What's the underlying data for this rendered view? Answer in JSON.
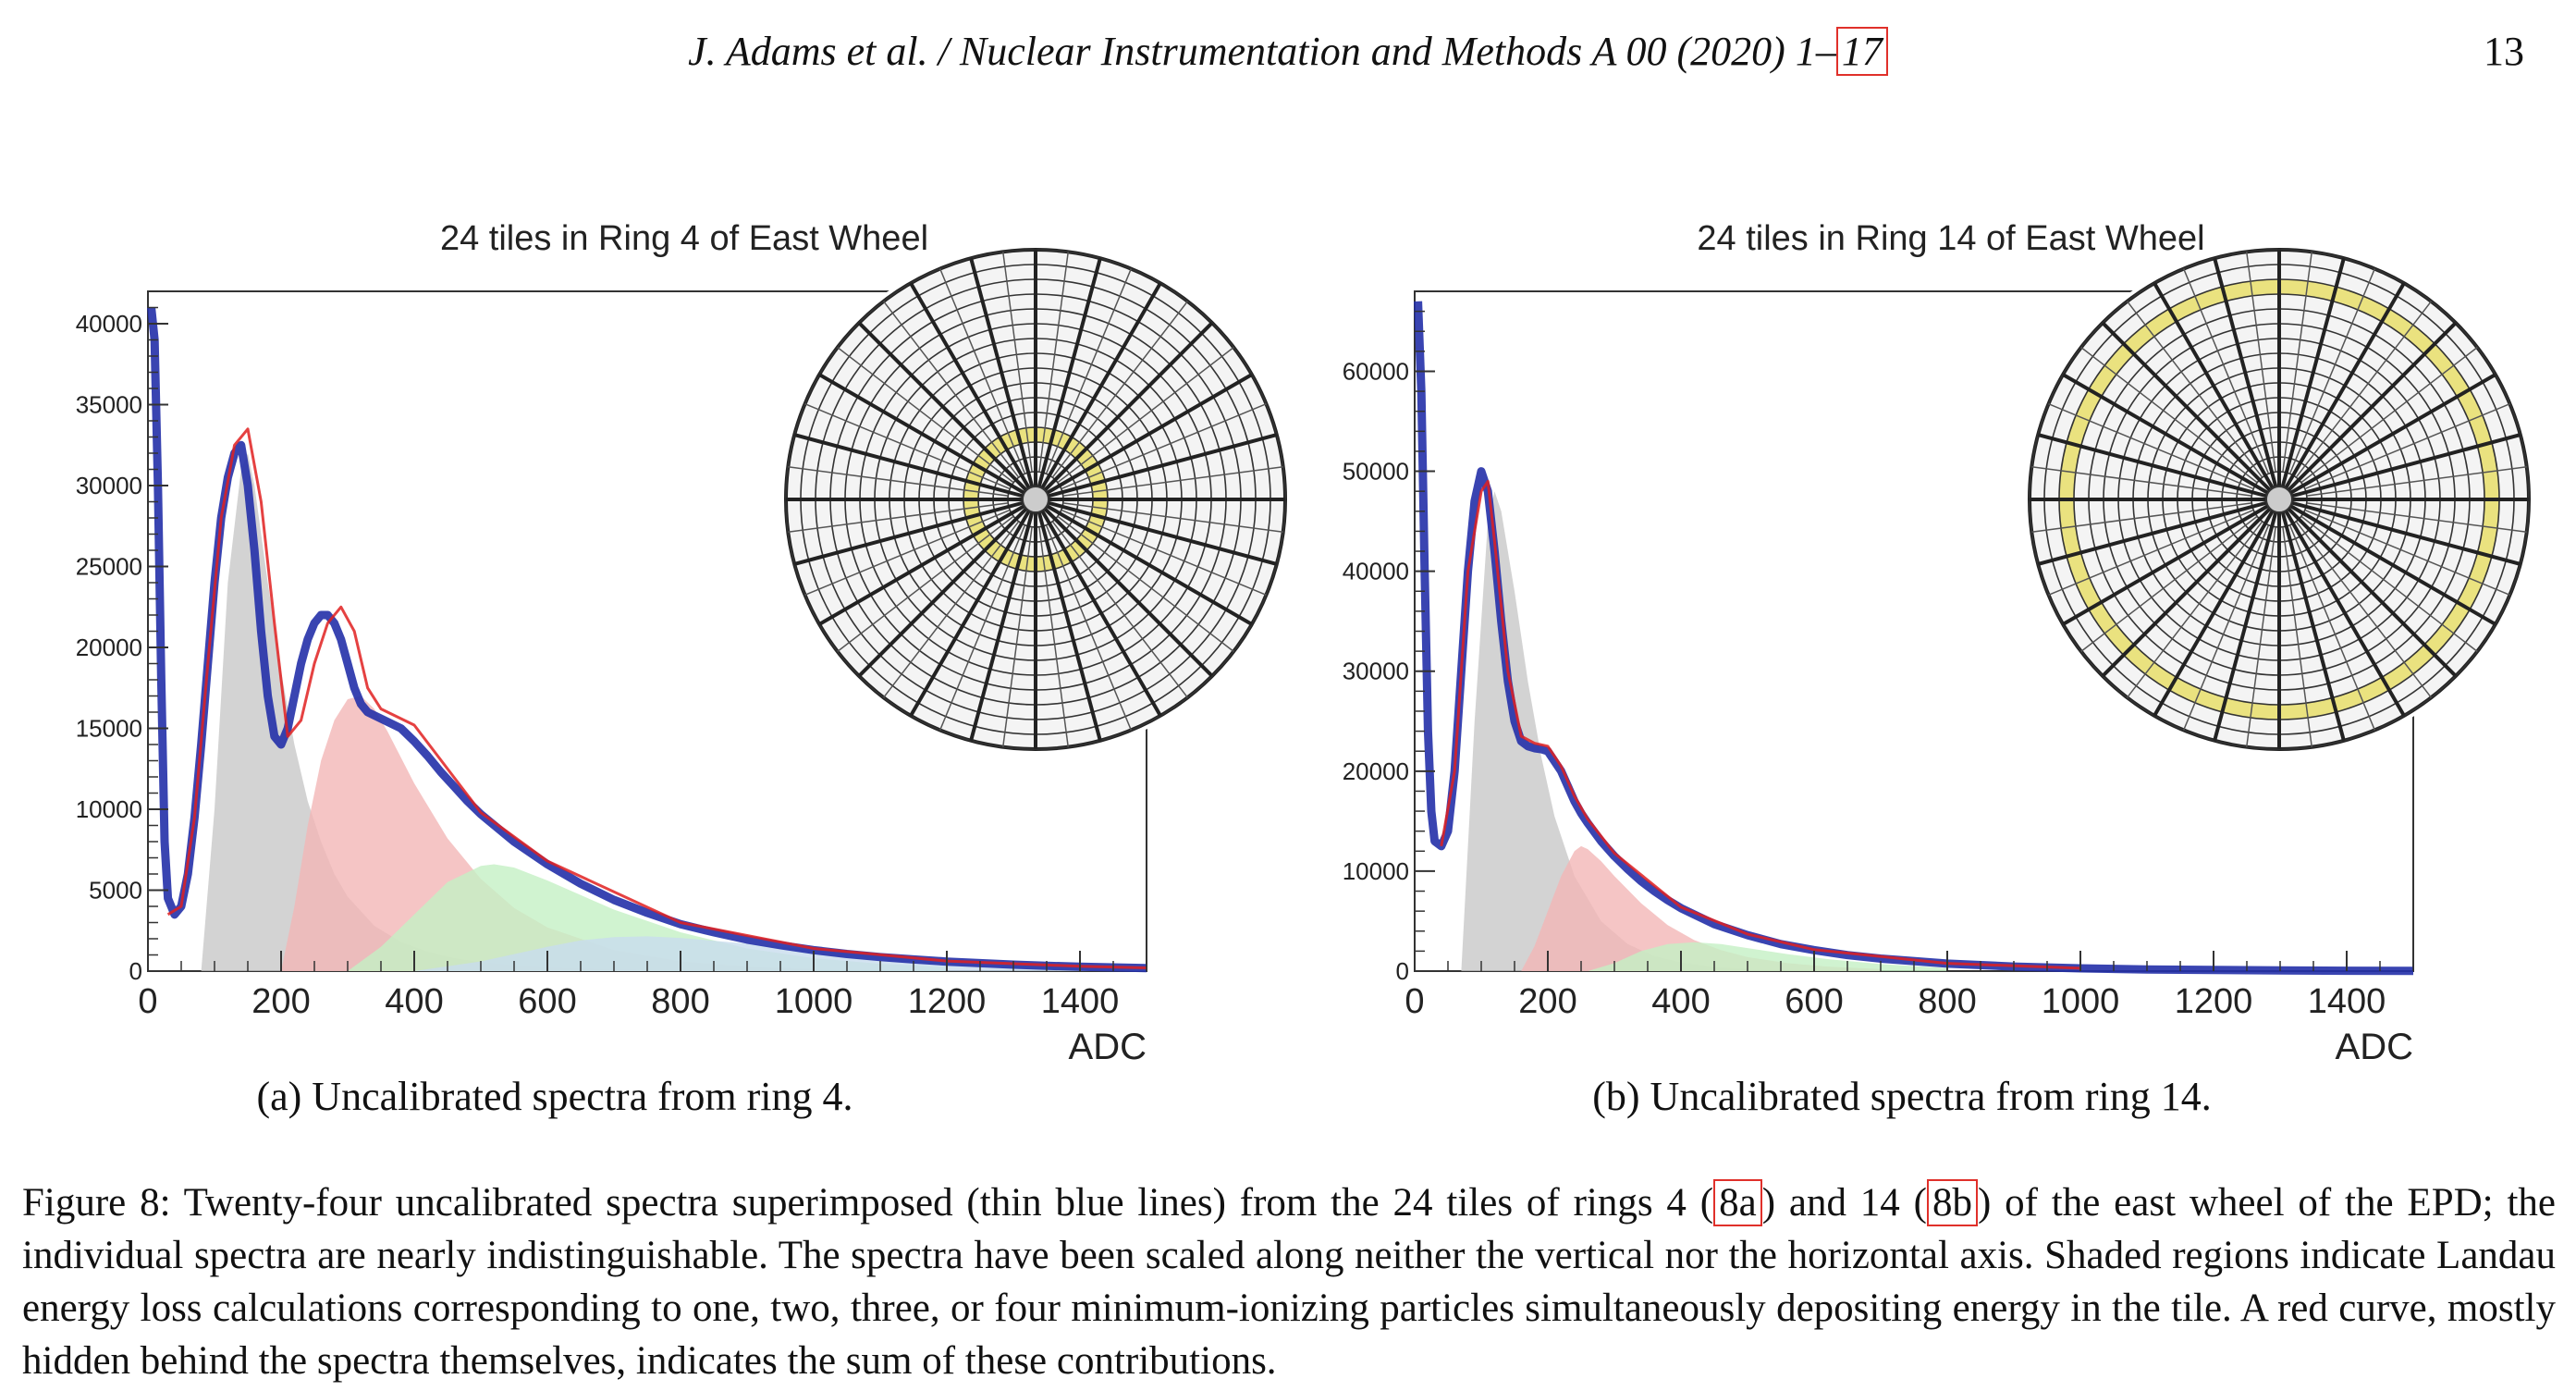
{
  "header": {
    "running_title_pre": "J. Adams et al. / Nuclear Instrumentation and Methods A 00 (2020) 1–",
    "running_title_link": "17",
    "page_number": "13"
  },
  "figures": [
    {
      "id": "a",
      "subcaption": "(a) Uncalibrated spectra from ring 4.",
      "chart_data": {
        "type": "area",
        "title": "24 tiles in Ring 4 of East Wheel",
        "xlabel": "ADC",
        "ylabel": "",
        "xlim": [
          0,
          1500
        ],
        "ylim": [
          0,
          42000
        ],
        "xticks": [
          0,
          200,
          400,
          600,
          800,
          1000,
          1200,
          1400
        ],
        "yticks": [
          0,
          5000,
          10000,
          15000,
          20000,
          25000,
          30000,
          35000,
          40000
        ],
        "highlighted_ring": 4,
        "series": [
          {
            "color": "#2430a8",
            "x": [
              5,
              10,
              15,
              20,
              25,
              30,
              40,
              50,
              60,
              70,
              80,
              90,
              100,
              110,
              120,
              130,
              140,
              150,
              160,
              170,
              180,
              190,
              200,
              210,
              220,
              230,
              240,
              250,
              260,
              270,
              280,
              290,
              300,
              310,
              320,
              330,
              340,
              350,
              360,
              380,
              400,
              420,
              440,
              460,
              480,
              500,
              550,
              600,
              650,
              700,
              750,
              800,
              850,
              900,
              950,
              1000,
              1050,
              1100,
              1150,
              1200,
              1250,
              1300,
              1350,
              1400,
              1450,
              1500
            ],
            "values": [
              41000,
              39000,
              30000,
              18000,
              8000,
              4500,
              3500,
              4000,
              6000,
              9500,
              14000,
              19000,
              24000,
              28000,
              30500,
              32000,
              32500,
              30000,
              26000,
              21000,
              17000,
              14500,
              14000,
              15000,
              17000,
              19000,
              20500,
              21500,
              22000,
              22000,
              21500,
              20500,
              19000,
              17500,
              16500,
              16000,
              15800,
              15600,
              15400,
              15000,
              14200,
              13300,
              12300,
              11400,
              10500,
              9700,
              8000,
              6600,
              5400,
              4400,
              3600,
              2900,
              2400,
              1950,
              1600,
              1300,
              1060,
              870,
              720,
              590,
              490,
              400,
              330,
              270,
              230,
              190
            ]
          },
          {
            "color": "#e02020",
            "x": [
              30,
              50,
              70,
              90,
              110,
              130,
              150,
              170,
              190,
              210,
              230,
              250,
              270,
              290,
              310,
              330,
              350,
              400,
              500,
              600,
              800,
              1000,
              1200,
              1400,
              1500
            ],
            "values": [
              3500,
              4000,
              9500,
              19000,
              28000,
              32500,
              33500,
              29000,
              21500,
              14500,
              15500,
              19000,
              21500,
              22500,
              21000,
              17500,
              16200,
              15200,
              9800,
              6800,
              3000,
              1400,
              620,
              300,
              200
            ]
          },
          {
            "color": "#c8c8c8",
            "x": [
              80,
              100,
              120,
              140,
              150,
              160,
              180,
              200,
              220,
              240,
              260,
              280,
              300,
              340,
              380,
              420,
              460,
              500,
              560,
              600,
              700,
              800
            ],
            "values": [
              0,
              10000,
              24000,
              31000,
              32000,
              30000,
              24000,
              18500,
              14000,
              10500,
              8000,
              6000,
              4600,
              2800,
              1800,
              1200,
              800,
              550,
              300,
              200,
              80,
              20
            ]
          },
          {
            "color": "#f2b6b6",
            "x": [
              200,
              220,
              240,
              260,
              280,
              300,
              320,
              340,
              360,
              380,
              400,
              450,
              500,
              550,
              600,
              700,
              800,
              900,
              1000
            ],
            "values": [
              0,
              4000,
              9000,
              13000,
              15500,
              16800,
              17000,
              16200,
              14800,
              13200,
              11600,
              8200,
              5700,
              3900,
              2700,
              1300,
              600,
              280,
              120
            ]
          },
          {
            "color": "#c4f0c4",
            "x": [
              300,
              350,
              400,
              450,
              500,
              520,
              550,
              600,
              650,
              700,
              800,
              900,
              1000,
              1100,
              1200
            ],
            "values": [
              0,
              1500,
              3500,
              5500,
              6500,
              6600,
              6400,
              5600,
              4700,
              3800,
              2400,
              1400,
              800,
              450,
              250
            ]
          },
          {
            "color": "#c8dcee",
            "x": [
              400,
              500,
              600,
              650,
              700,
              750,
              800,
              900,
              1000,
              1100,
              1200,
              1300,
              1400,
              1500
            ],
            "values": [
              0,
              600,
              1500,
              1900,
              2100,
              2150,
              2050,
              1700,
              1300,
              950,
              650,
              450,
              300,
              200
            ]
          }
        ]
      }
    },
    {
      "id": "b",
      "subcaption": "(b) Uncalibrated spectra from ring 14.",
      "chart_data": {
        "type": "area",
        "title": "24 tiles in Ring 14 of East Wheel",
        "xlabel": "ADC",
        "ylabel": "",
        "xlim": [
          0,
          1500
        ],
        "ylim": [
          0,
          68000
        ],
        "xticks": [
          0,
          200,
          400,
          600,
          800,
          1000,
          1200,
          1400
        ],
        "yticks": [
          0,
          10000,
          20000,
          30000,
          40000,
          50000,
          60000
        ],
        "highlighted_ring": 14,
        "series": [
          {
            "color": "#2430a8",
            "x": [
              5,
              10,
              15,
              20,
              25,
              30,
              40,
              50,
              60,
              70,
              80,
              90,
              100,
              110,
              120,
              130,
              140,
              150,
              160,
              170,
              180,
              190,
              200,
              210,
              220,
              230,
              240,
              250,
              260,
              280,
              300,
              320,
              340,
              360,
              380,
              400,
              450,
              500,
              550,
              600,
              650,
              700,
              800,
              900,
              1000,
              1100,
              1200,
              1300,
              1400,
              1500
            ],
            "values": [
              67000,
              58000,
              40000,
              24000,
              16000,
              13000,
              12500,
              14000,
              20000,
              30000,
              40000,
              47000,
              50000,
              48000,
              42000,
              35000,
              29000,
              25000,
              23000,
              22500,
              22300,
              22200,
              22000,
              21000,
              20000,
              18500,
              17000,
              15800,
              14800,
              13000,
              11500,
              10200,
              9000,
              8000,
              7100,
              6300,
              4700,
              3600,
              2700,
              2100,
              1600,
              1250,
              750,
              450,
              280,
              170,
              110,
              70,
              40,
              20
            ]
          },
          {
            "color": "#e02020",
            "x": [
              40,
              60,
              80,
              100,
              110,
              120,
              140,
              160,
              180,
              200,
              220,
              240,
              260,
              300,
              400,
              500,
              600,
              800,
              1000
            ],
            "values": [
              12500,
              20000,
              40000,
              48000,
              49000,
              43000,
              30000,
              23500,
              22800,
              22500,
              20500,
              17500,
              15200,
              11800,
              6400,
              3700,
              2150,
              780,
              290
            ]
          },
          {
            "color": "#c8c8c8",
            "x": [
              70,
              90,
              110,
              120,
              130,
              150,
              170,
              190,
              210,
              240,
              280,
              320,
              360,
              400,
              450,
              500
            ],
            "values": [
              0,
              25000,
              45000,
              48000,
              46000,
              38000,
              29000,
              21500,
              15500,
              9500,
              5000,
              2700,
              1500,
              850,
              400,
              200
            ]
          },
          {
            "color": "#f2b6b6",
            "x": [
              160,
              180,
              200,
              220,
              240,
              250,
              260,
              280,
              300,
              340,
              380,
              420,
              460,
              500,
              560,
              620,
              700
            ],
            "values": [
              0,
              2500,
              6000,
              9500,
              12000,
              12500,
              12200,
              11000,
              9500,
              6800,
              4600,
              3100,
              2100,
              1400,
              800,
              450,
              200
            ]
          },
          {
            "color": "#c4f0c4",
            "x": [
              260,
              300,
              340,
              380,
              420,
              460,
              500,
              560,
              620,
              700,
              800
            ],
            "values": [
              0,
              800,
              2000,
              2700,
              2900,
              2700,
              2300,
              1700,
              1200,
              700,
              300
            ]
          }
        ]
      }
    }
  ],
  "caption": {
    "part1": "Figure 8: Twenty-four uncalibrated spectra superimposed (thin blue lines) from the 24 tiles of rings 4 (",
    "ref_a": "8a",
    "part2": ") and 14 (",
    "ref_b": "8b",
    "part3": ") of the east wheel of the EPD; the individual spectra are nearly indistinguishable. The spectra have been scaled along neither the vertical nor the horizontal axis. Shaded regions indicate Landau energy loss calculations corresponding to one, two, three, or four minimum-ionizing particles simultaneously depositing energy in the tile. A red curve, mostly hidden behind the spectra themselves, indicates the sum of these contributions."
  },
  "colors": {
    "spectra": "#2430a8",
    "sum": "#e02020",
    "ring_highlight": "#e8de6a",
    "link_box": "#e0302a"
  }
}
